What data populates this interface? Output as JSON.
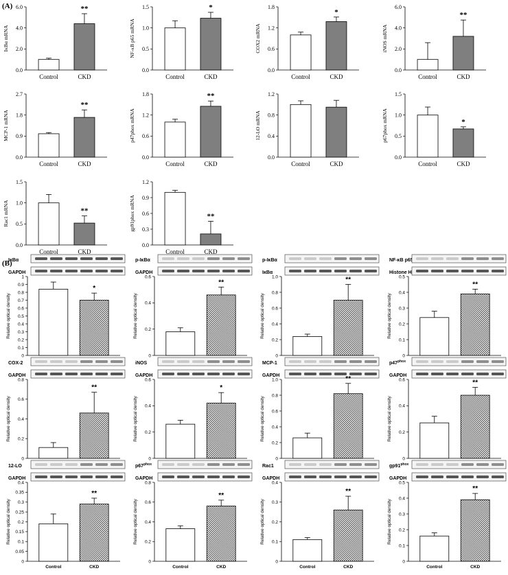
{
  "figure": {
    "panel_a_label": "(A)",
    "panel_b_label": "(B)",
    "colors": {
      "control": "#ffffff",
      "ckd_a": "#7f7f7f",
      "axis": "#000000",
      "blot_bg": "#f4f4f4",
      "band": "#3a3a3a"
    }
  },
  "chart_data": [
    {
      "id": "a_ikba",
      "type": "bar",
      "panel": "A",
      "ylabel": "IκBα mRNA",
      "categories": [
        "Control",
        "CKD"
      ],
      "values": [
        1.0,
        4.4
      ],
      "errors": [
        0.12,
        0.95
      ],
      "ylim": [
        0,
        6
      ],
      "yticks": [
        "0.0",
        "2.0",
        "4.0",
        "6.0"
      ],
      "yticks_values": [
        0,
        2,
        4,
        6
      ],
      "significance": "**"
    },
    {
      "id": "a_nfkb",
      "type": "bar",
      "panel": "A",
      "ylabel": "NF-κB p65 mRNA",
      "categories": [
        "Control",
        "CKD"
      ],
      "values": [
        1.0,
        1.23
      ],
      "errors": [
        0.17,
        0.14
      ],
      "ylim": [
        0,
        1.5
      ],
      "yticks": [
        "0.0",
        "0.5",
        "1.0",
        "1.5"
      ],
      "yticks_values": [
        0,
        0.5,
        1,
        1.5
      ],
      "significance": "*"
    },
    {
      "id": "a_cox2",
      "type": "bar",
      "panel": "A",
      "ylabel": "COX2 mRNA",
      "categories": [
        "Control",
        "CKD"
      ],
      "values": [
        1.0,
        1.38
      ],
      "errors": [
        0.08,
        0.13
      ],
      "ylim": [
        0,
        1.8
      ],
      "yticks": [
        "0.0",
        "0.6",
        "1.2",
        "1.8"
      ],
      "yticks_values": [
        0,
        0.6,
        1.2,
        1.8
      ],
      "significance": "*"
    },
    {
      "id": "a_inos",
      "type": "bar",
      "panel": "A",
      "ylabel": "iNOS mRNA",
      "categories": [
        "Control",
        "CKD"
      ],
      "values": [
        1.0,
        3.2
      ],
      "errors": [
        1.6,
        1.55
      ],
      "ylim": [
        0,
        6
      ],
      "yticks": [
        "0.0",
        "2.0",
        "4.0",
        "6.0"
      ],
      "yticks_values": [
        0,
        2,
        4,
        6
      ],
      "significance": "**"
    },
    {
      "id": "a_mcp1",
      "type": "bar",
      "panel": "A",
      "ylabel": "MCP-1 mRNA",
      "categories": [
        "Control",
        "CKD"
      ],
      "values": [
        1.0,
        1.7
      ],
      "errors": [
        0.05,
        0.32
      ],
      "ylim": [
        0,
        2.7
      ],
      "yticks": [
        "0.0",
        "0.9",
        "1.8",
        "2.7"
      ],
      "yticks_values": [
        0,
        0.9,
        1.8,
        2.7
      ],
      "significance": "**"
    },
    {
      "id": "a_p47",
      "type": "bar",
      "panel": "A",
      "ylabel": "p47phox mRNA",
      "categories": [
        "Control",
        "CKD"
      ],
      "values": [
        1.0,
        1.45
      ],
      "errors": [
        0.08,
        0.15
      ],
      "ylim": [
        0,
        1.8
      ],
      "yticks": [
        "0.0",
        "0.6",
        "1.2",
        "1.8"
      ],
      "yticks_values": [
        0,
        0.6,
        1.2,
        1.8
      ],
      "significance": "**"
    },
    {
      "id": "a_12lo",
      "type": "bar",
      "panel": "A",
      "ylabel": "12-LO mRNA",
      "categories": [
        "Control",
        "CKD"
      ],
      "values": [
        1.0,
        0.95
      ],
      "errors": [
        0.07,
        0.13
      ],
      "ylim": [
        0,
        1.2
      ],
      "yticks": [
        "0.0",
        "0.4",
        "0.8",
        "1.2"
      ],
      "yticks_values": [
        0,
        0.4,
        0.8,
        1.2
      ],
      "significance": ""
    },
    {
      "id": "a_p67",
      "type": "bar",
      "panel": "A",
      "ylabel": "p67phox mRNA",
      "categories": [
        "Control",
        "CKD"
      ],
      "values": [
        1.0,
        0.67
      ],
      "errors": [
        0.19,
        0.05
      ],
      "ylim": [
        0,
        1.5
      ],
      "yticks": [
        "0.0",
        "0.5",
        "1.0",
        "1.5"
      ],
      "yticks_values": [
        0,
        0.5,
        1,
        1.5
      ],
      "significance": "*"
    },
    {
      "id": "a_rac1",
      "type": "bar",
      "panel": "A",
      "ylabel": "Rac1 mRNA",
      "categories": [
        "Control",
        "CKD"
      ],
      "values": [
        1.0,
        0.52
      ],
      "errors": [
        0.2,
        0.17
      ],
      "ylim": [
        0,
        1.5
      ],
      "yticks": [
        "0.0",
        "0.5",
        "1.0",
        "1.5"
      ],
      "yticks_values": [
        0,
        0.5,
        1,
        1.5
      ],
      "significance": "**"
    },
    {
      "id": "a_gp91",
      "type": "bar",
      "panel": "A",
      "ylabel": "gp91phox mRNA",
      "categories": [
        "Control",
        "CKD"
      ],
      "values": [
        1.0,
        0.21
      ],
      "errors": [
        0.04,
        0.24
      ],
      "ylim": [
        0,
        1.2
      ],
      "yticks": [
        "0.0",
        "0.3",
        "0.6",
        "0.9",
        "1.2"
      ],
      "yticks_values": [
        0,
        0.3,
        0.6,
        0.9,
        1.2
      ],
      "significance": "**"
    },
    {
      "id": "b_ikba",
      "type": "bar",
      "panel": "B",
      "blots": [
        "IκBα",
        "GAPDH"
      ],
      "ylabel": "Relative optical density",
      "categories": [
        "Control",
        "CKD"
      ],
      "values": [
        0.84,
        0.7
      ],
      "errors": [
        0.09,
        0.09
      ],
      "ylim": [
        0,
        1.0
      ],
      "yticks": [
        "0",
        "0.1",
        "0.2",
        "0.3",
        "0.4",
        "0.5",
        "0.6",
        "0.7",
        "0.8",
        "0.9",
        "1"
      ],
      "yticks_values": [
        0,
        0.1,
        0.2,
        0.3,
        0.4,
        0.5,
        0.6,
        0.7,
        0.8,
        0.9,
        1
      ],
      "significance": "*"
    },
    {
      "id": "b_pikba",
      "type": "bar",
      "panel": "B",
      "blots": [
        "p-IκBα",
        "GAPDH"
      ],
      "ylabel": "Relative optical density",
      "categories": [
        "Control",
        "CKD"
      ],
      "values": [
        0.18,
        0.46
      ],
      "errors": [
        0.03,
        0.06
      ],
      "ylim": [
        0,
        0.6
      ],
      "yticks": [
        "0",
        "0.2",
        "0.4",
        "0.6"
      ],
      "yticks_values": [
        0,
        0.2,
        0.4,
        0.6
      ],
      "significance": "**"
    },
    {
      "id": "b_pikba2",
      "type": "bar",
      "panel": "B",
      "blots": [
        "p-IκBα",
        "IκBα"
      ],
      "ylabel": "Relative optical density",
      "categories": [
        "Control",
        "CKD"
      ],
      "values": [
        0.24,
        0.7
      ],
      "errors": [
        0.03,
        0.2
      ],
      "ylim": [
        0,
        1.0
      ],
      "yticks": [
        "0",
        "0.2",
        "0.4",
        "0.6",
        "0.8",
        "1.0"
      ],
      "yticks_values": [
        0,
        0.2,
        0.4,
        0.6,
        0.8,
        1.0
      ],
      "significance": "**"
    },
    {
      "id": "b_nfkb",
      "type": "bar",
      "panel": "B",
      "blots": [
        "NF-κB p65",
        "Histone H3"
      ],
      "ylabel": "Relative optical density",
      "categories": [
        "Control",
        "CKD"
      ],
      "values": [
        0.24,
        0.39
      ],
      "errors": [
        0.04,
        0.03
      ],
      "ylim": [
        0,
        0.5
      ],
      "yticks": [
        "0",
        "0.1",
        "0.2",
        "0.3",
        "0.4",
        "0.5"
      ],
      "yticks_values": [
        0,
        0.1,
        0.2,
        0.3,
        0.4,
        0.5
      ],
      "significance": "**"
    },
    {
      "id": "b_cox2",
      "type": "bar",
      "panel": "B",
      "blots": [
        "COX-2",
        "GAPDH"
      ],
      "ylabel": "Relative optical density",
      "categories": [
        "Control",
        "CKD"
      ],
      "values": [
        0.11,
        0.46
      ],
      "errors": [
        0.05,
        0.21
      ],
      "ylim": [
        0,
        0.8
      ],
      "yticks": [
        "0",
        "0.2",
        "0.4",
        "0.6",
        "0.8"
      ],
      "yticks_values": [
        0,
        0.2,
        0.4,
        0.6,
        0.8
      ],
      "significance": "**"
    },
    {
      "id": "b_inos",
      "type": "bar",
      "panel": "B",
      "blots": [
        "iNOS",
        "GAPDH"
      ],
      "ylabel": "Relative optical density",
      "categories": [
        "Control",
        "CKD"
      ],
      "values": [
        0.26,
        0.42
      ],
      "errors": [
        0.03,
        0.08
      ],
      "ylim": [
        0,
        0.6
      ],
      "yticks": [
        "0",
        "0.2",
        "0.4",
        "0.6"
      ],
      "yticks_values": [
        0,
        0.2,
        0.4,
        0.6
      ],
      "significance": "*"
    },
    {
      "id": "b_mcp1",
      "type": "bar",
      "panel": "B",
      "blots": [
        "MCP-1",
        "GAPDH"
      ],
      "ylabel": "Relative optical density",
      "categories": [
        "Control",
        "CKD"
      ],
      "values": [
        0.26,
        0.82
      ],
      "errors": [
        0.06,
        0.13
      ],
      "ylim": [
        0,
        1.0
      ],
      "yticks": [
        "0",
        "0.2",
        "0.4",
        "0.6",
        "0.8",
        "1.0"
      ],
      "yticks_values": [
        0,
        0.2,
        0.4,
        0.6,
        0.8,
        1.0
      ],
      "significance": "**"
    },
    {
      "id": "b_p47",
      "type": "bar",
      "panel": "B",
      "blots": [
        "p47phox",
        "GAPDH"
      ],
      "ylabel": "Relative optical density",
      "categories": [
        "Control",
        "CKD"
      ],
      "values": [
        0.27,
        0.48
      ],
      "errors": [
        0.05,
        0.06
      ],
      "ylim": [
        0,
        0.6
      ],
      "yticks": [
        "0",
        "0.2",
        "0.4",
        "0.6"
      ],
      "yticks_values": [
        0,
        0.2,
        0.4,
        0.6
      ],
      "significance": "**"
    },
    {
      "id": "b_12lo",
      "type": "bar",
      "panel": "B",
      "blots": [
        "12-LO",
        "GAPDH"
      ],
      "ylabel": "Relative optical density",
      "categories": [
        "Control",
        "CKD"
      ],
      "values": [
        0.19,
        0.29
      ],
      "errors": [
        0.05,
        0.03
      ],
      "ylim": [
        0,
        0.4
      ],
      "yticks": [
        "0",
        "0.05",
        "0.1",
        "0.15",
        "0.2",
        "0.25",
        "0.3",
        "0.35",
        "0.4"
      ],
      "yticks_values": [
        0,
        0.05,
        0.1,
        0.15,
        0.2,
        0.25,
        0.3,
        0.35,
        0.4
      ],
      "significance": "**"
    },
    {
      "id": "b_p67",
      "type": "bar",
      "panel": "B",
      "blots": [
        "p67phox",
        "GAPDH"
      ],
      "ylabel": "Relative optical density",
      "categories": [
        "Control",
        "CKD"
      ],
      "values": [
        0.33,
        0.56
      ],
      "errors": [
        0.03,
        0.06
      ],
      "ylim": [
        0,
        0.8
      ],
      "yticks": [
        "0",
        "0.2",
        "0.4",
        "0.6",
        "0.8"
      ],
      "yticks_values": [
        0,
        0.2,
        0.4,
        0.6,
        0.8
      ],
      "significance": "**"
    },
    {
      "id": "b_rac1",
      "type": "bar",
      "panel": "B",
      "blots": [
        "Rac1",
        "GAPDH"
      ],
      "ylabel": "Relative optical density",
      "categories": [
        "Control",
        "CKD"
      ],
      "values": [
        0.11,
        0.26
      ],
      "errors": [
        0.01,
        0.07
      ],
      "ylim": [
        0,
        0.4
      ],
      "yticks": [
        "0",
        "0.1",
        "0.2",
        "0.3",
        "0.4"
      ],
      "yticks_values": [
        0,
        0.1,
        0.2,
        0.3,
        0.4
      ],
      "significance": "**"
    },
    {
      "id": "b_gp91",
      "type": "bar",
      "panel": "B",
      "blots": [
        "gp91phox",
        "GAPDH"
      ],
      "ylabel": "Relative optical density",
      "categories": [
        "Control",
        "CKD"
      ],
      "values": [
        0.16,
        0.39
      ],
      "errors": [
        0.02,
        0.04
      ],
      "ylim": [
        0,
        0.5
      ],
      "yticks": [
        "0",
        "0.1",
        "0.2",
        "0.3",
        "0.4",
        "0.5"
      ],
      "yticks_values": [
        0,
        0.1,
        0.2,
        0.3,
        0.4,
        0.5
      ],
      "significance": "**"
    }
  ]
}
